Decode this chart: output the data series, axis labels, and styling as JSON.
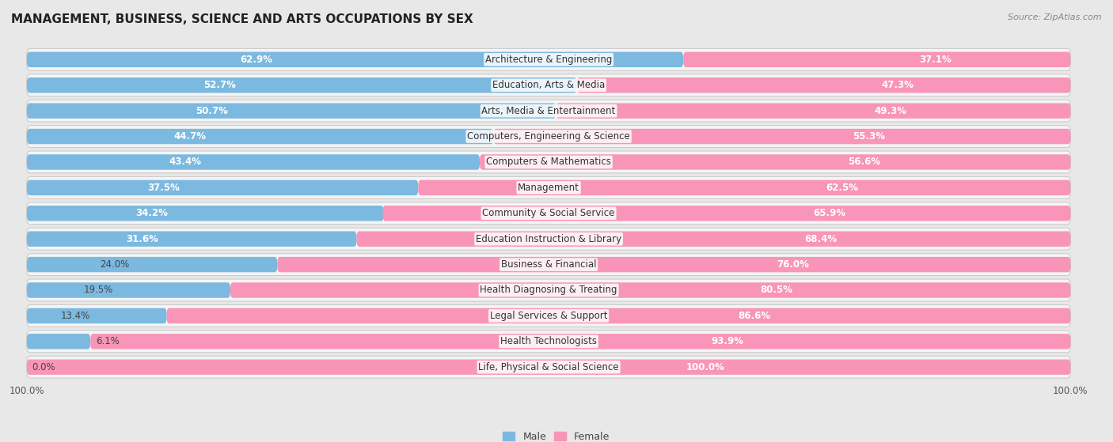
{
  "title": "MANAGEMENT, BUSINESS, SCIENCE AND ARTS OCCUPATIONS BY SEX",
  "source": "Source: ZipAtlas.com",
  "categories": [
    "Architecture & Engineering",
    "Education, Arts & Media",
    "Arts, Media & Entertainment",
    "Computers, Engineering & Science",
    "Computers & Mathematics",
    "Management",
    "Community & Social Service",
    "Education Instruction & Library",
    "Business & Financial",
    "Health Diagnosing & Treating",
    "Legal Services & Support",
    "Health Technologists",
    "Life, Physical & Social Science"
  ],
  "male_pct": [
    62.9,
    52.7,
    50.7,
    44.7,
    43.4,
    37.5,
    34.2,
    31.6,
    24.0,
    19.5,
    13.4,
    6.1,
    0.0
  ],
  "female_pct": [
    37.1,
    47.3,
    49.3,
    55.3,
    56.6,
    62.5,
    65.9,
    68.4,
    76.0,
    80.5,
    86.6,
    93.9,
    100.0
  ],
  "male_color": "#7cb9e0",
  "female_color": "#f895b8",
  "background_color": "#e8e8e8",
  "bar_background": "#f5f5f5",
  "row_background": "#dedede",
  "title_fontsize": 11,
  "label_fontsize": 8.5,
  "source_fontsize": 8,
  "legend_fontsize": 9
}
